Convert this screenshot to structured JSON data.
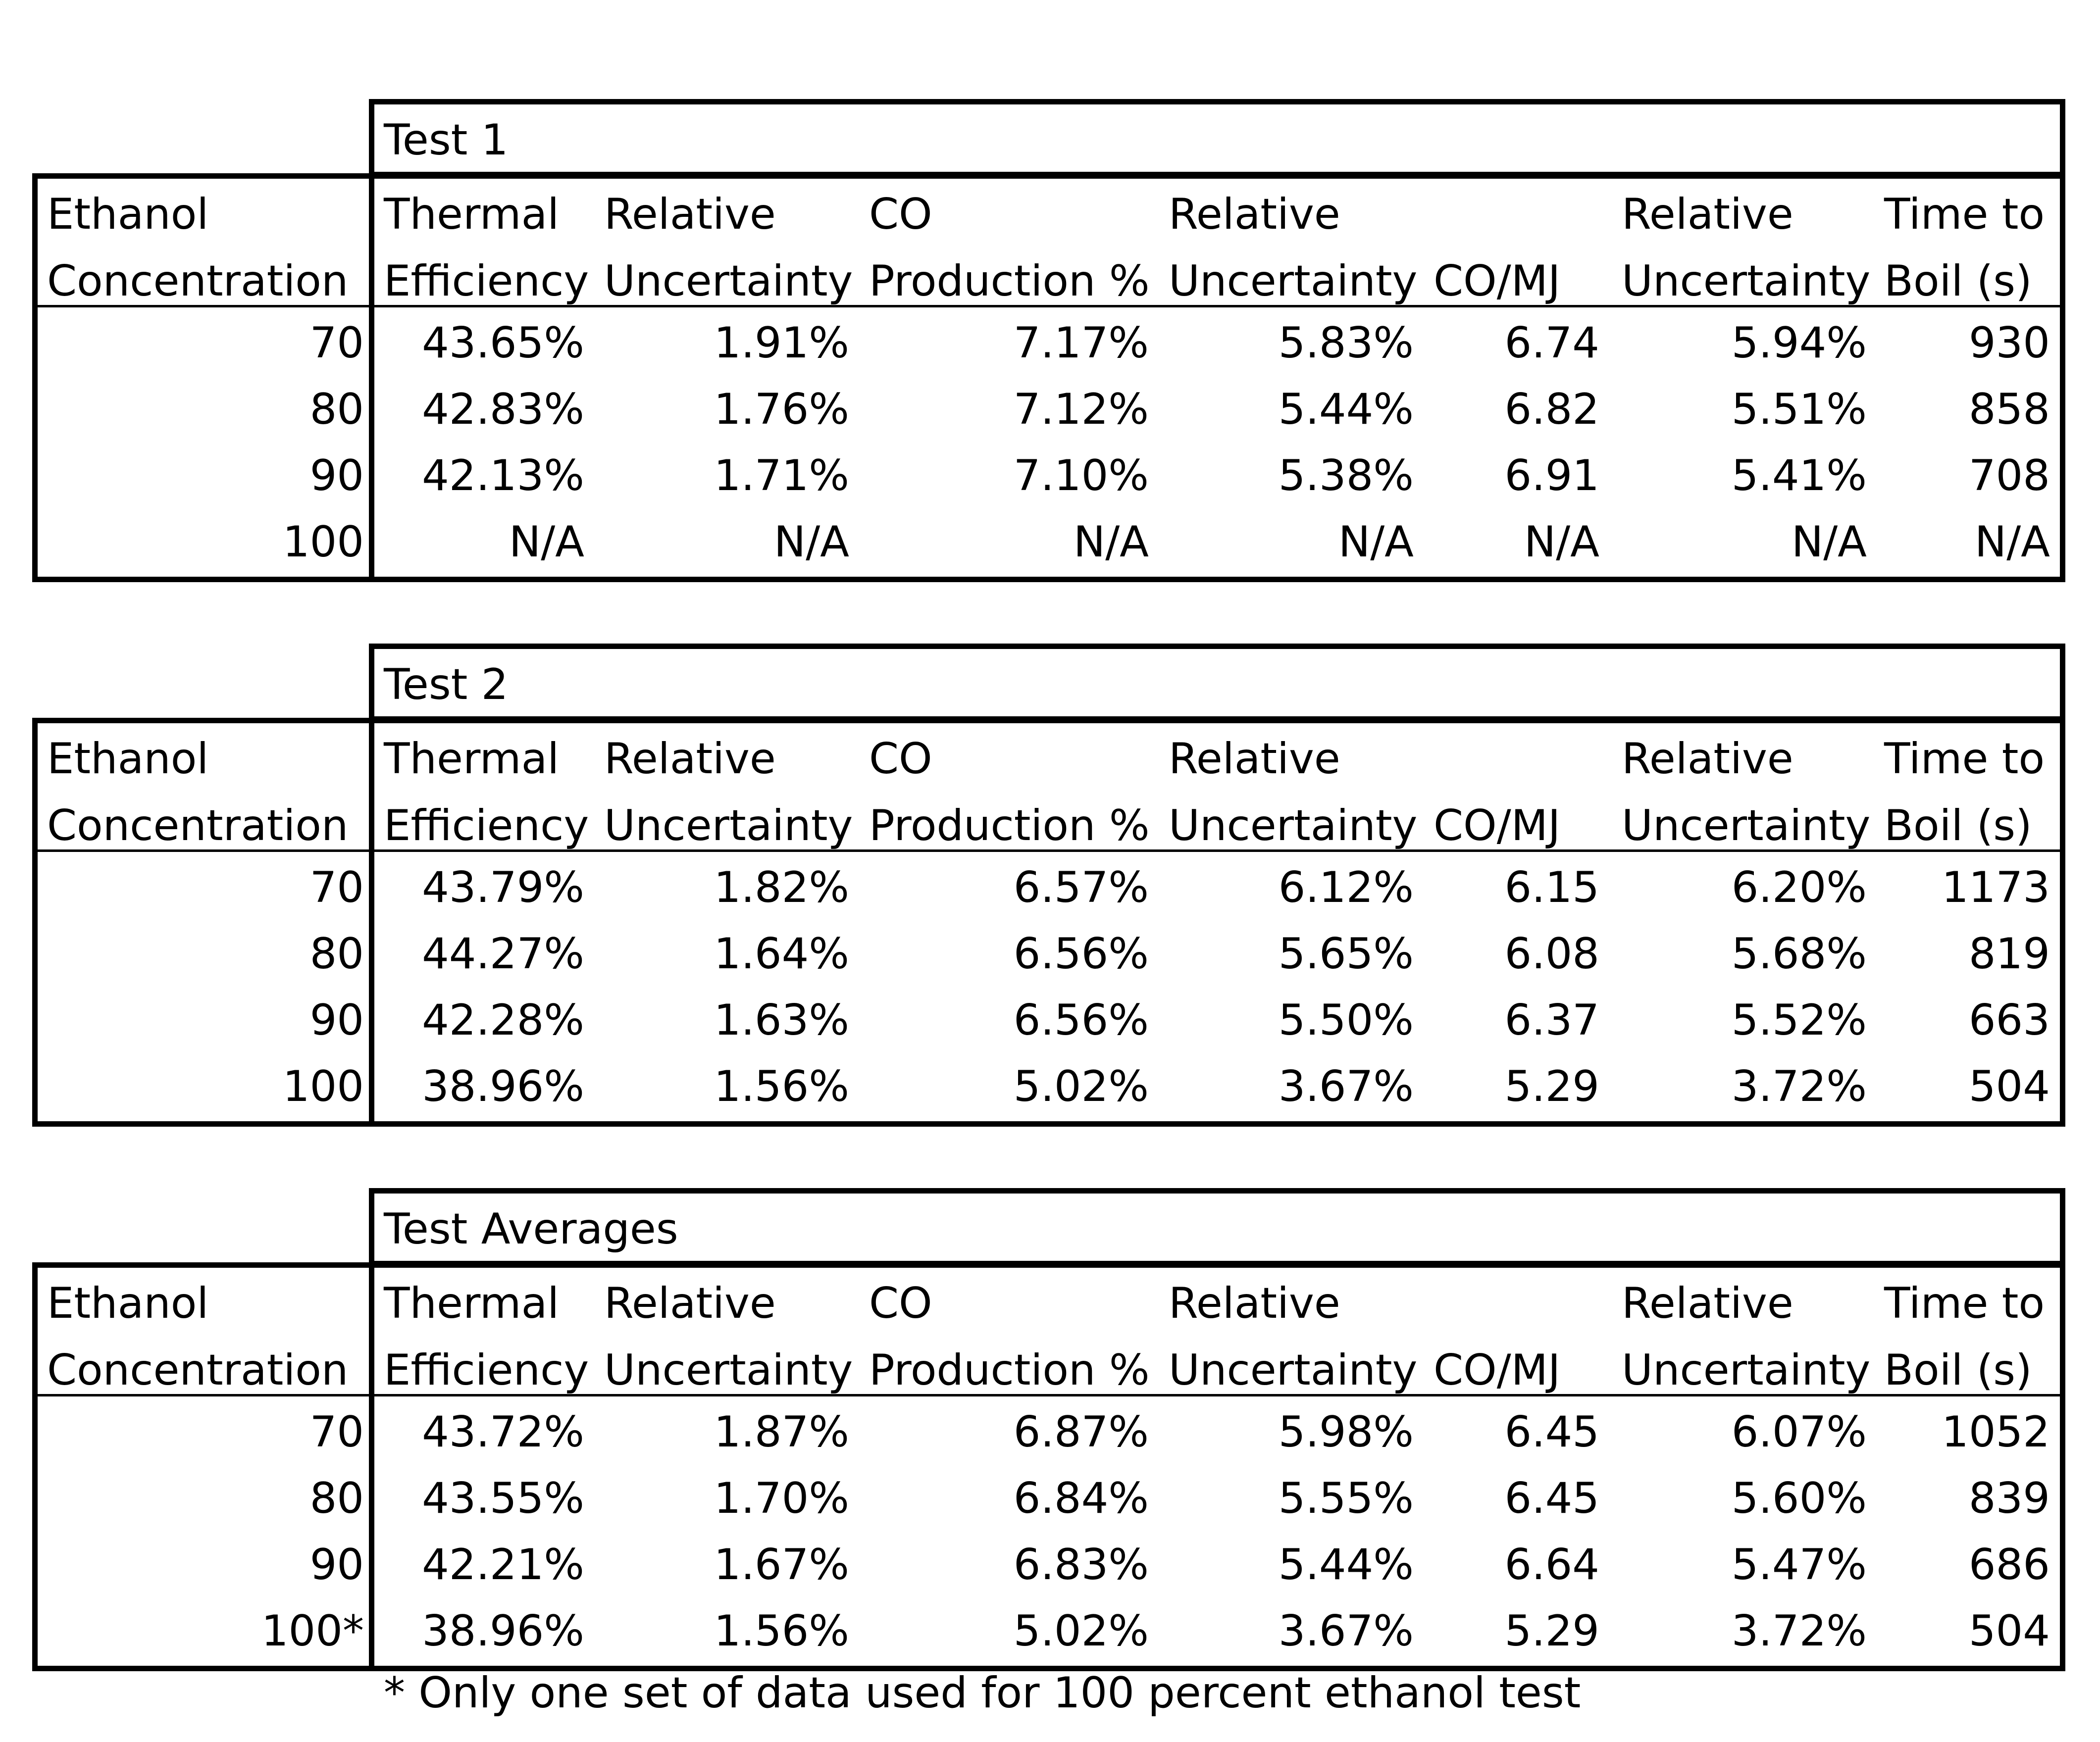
{
  "headers": {
    "ethanol": [
      "Ethanol",
      "Concentration"
    ],
    "thermal": [
      "Thermal",
      "Efficiency"
    ],
    "rel_unc": [
      "Relative",
      "Uncertainty"
    ],
    "co": [
      "CO",
      "Production %"
    ],
    "co_mj": [
      "",
      "CO/MJ"
    ],
    "time": [
      "Time to",
      "Boil (s)"
    ]
  },
  "tables": [
    {
      "title": "Test 1",
      "rows": [
        [
          "70",
          "43.65%",
          "1.91%",
          "7.17%",
          "5.83%",
          "6.74",
          "5.94%",
          "930"
        ],
        [
          "80",
          "42.83%",
          "1.76%",
          "7.12%",
          "5.44%",
          "6.82",
          "5.51%",
          "858"
        ],
        [
          "90",
          "42.13%",
          "1.71%",
          "7.10%",
          "5.38%",
          "6.91",
          "5.41%",
          "708"
        ],
        [
          "100",
          "N/A",
          "N/A",
          "N/A",
          "N/A",
          "N/A",
          "N/A",
          "N/A"
        ]
      ]
    },
    {
      "title": "Test 2",
      "rows": [
        [
          "70",
          "43.79%",
          "1.82%",
          "6.57%",
          "6.12%",
          "6.15",
          "6.20%",
          "1173"
        ],
        [
          "80",
          "44.27%",
          "1.64%",
          "6.56%",
          "5.65%",
          "6.08",
          "5.68%",
          "819"
        ],
        [
          "90",
          "42.28%",
          "1.63%",
          "6.56%",
          "5.50%",
          "6.37",
          "5.52%",
          "663"
        ],
        [
          "100",
          "38.96%",
          "1.56%",
          "5.02%",
          "3.67%",
          "5.29",
          "3.72%",
          "504"
        ]
      ]
    },
    {
      "title": "Test Averages",
      "rows": [
        [
          "70",
          "43.72%",
          "1.87%",
          "6.87%",
          "5.98%",
          "6.45",
          "6.07%",
          "1052"
        ],
        [
          "80",
          "43.55%",
          "1.70%",
          "6.84%",
          "5.55%",
          "6.45",
          "5.60%",
          "839"
        ],
        [
          "90",
          "42.21%",
          "1.67%",
          "6.83%",
          "5.44%",
          "6.64",
          "5.47%",
          "686"
        ],
        [
          "100*",
          "38.96%",
          "1.56%",
          "5.02%",
          "3.67%",
          "5.29",
          "3.72%",
          "504"
        ]
      ]
    }
  ],
  "footnote": "* Only one set of data used for 100 percent ethanol test"
}
